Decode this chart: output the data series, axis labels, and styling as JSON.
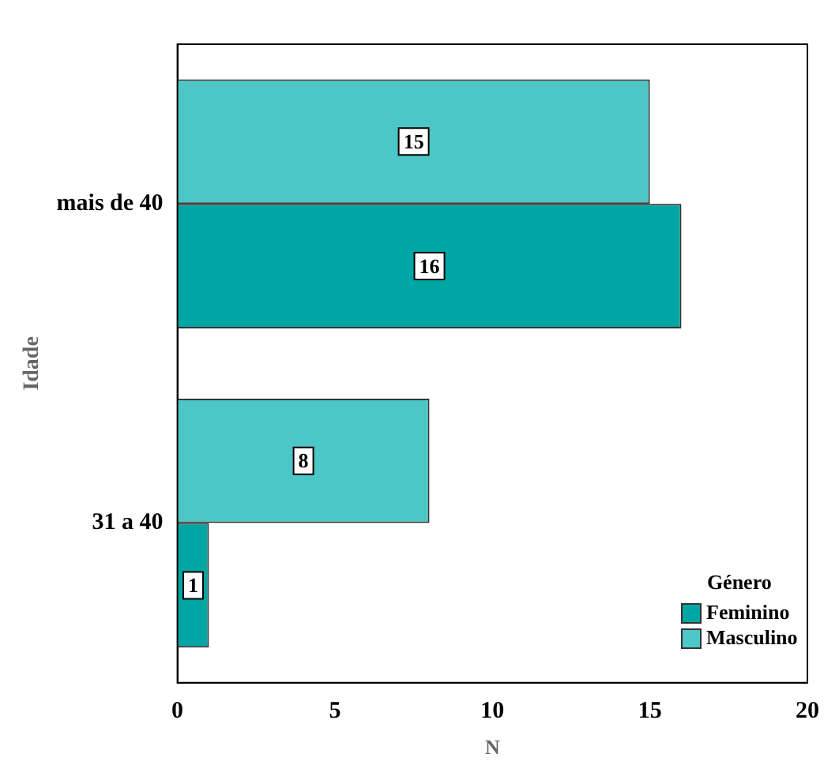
{
  "chart_data": {
    "type": "bar",
    "orientation": "horizontal",
    "xlabel": "N",
    "ylabel": "Idade",
    "legend_title": "Género",
    "legend": "bottom right",
    "categories": [
      "mais de 40",
      "31 a 40"
    ],
    "series": [
      {
        "name": "Feminino",
        "color": "#00a6a3",
        "values": [
          16,
          1
        ]
      },
      {
        "name": "Masculino",
        "color": "#4cc6c6",
        "values": [
          15,
          8
        ]
      }
    ],
    "xlim": [
      0,
      20
    ],
    "xticks": [
      0,
      5,
      10,
      15,
      20
    ],
    "grid": false,
    "data_labels": true
  }
}
